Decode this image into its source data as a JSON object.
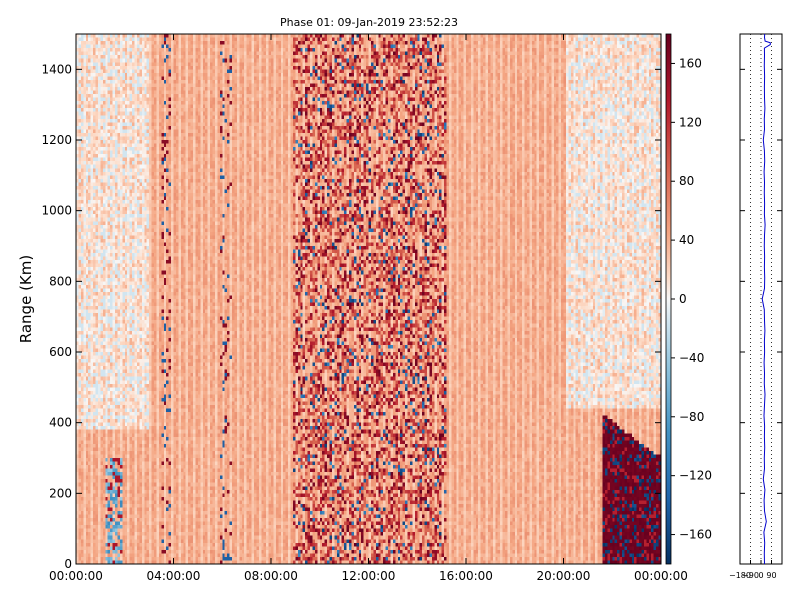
{
  "chart_data": [
    {
      "type": "heatmap",
      "title": "Phase 01: 09-Jan-2019 23:52:23",
      "xlabel": "",
      "ylabel": "Range (Km)",
      "x_ticks": [
        "00:00:00",
        "04:00:00",
        "08:00:00",
        "12:00:00",
        "16:00:00",
        "20:00:00",
        "00:00:00"
      ],
      "xlim": [
        "2019-01-09 00:00:00",
        "2019-01-10 00:00:00"
      ],
      "y_ticks": [
        0,
        200,
        400,
        600,
        800,
        1000,
        1200,
        1400
      ],
      "ylim": [
        0,
        1500
      ],
      "colormap": "RdBu_r",
      "colorbar": {
        "ticks": [
          160,
          120,
          80,
          40,
          0,
          -40,
          -80,
          -120,
          -160
        ],
        "range": [
          -180,
          180
        ]
      },
      "colors": {
        "deep_blue": "#053061",
        "mid_blue": "#4393c3",
        "light_blue": "#d1e5f0",
        "white": "#f7f7f7",
        "light_red": "#fddbc7",
        "mid_red": "#d6604d",
        "deep_red": "#67001f"
      },
      "description_note": "Phase (degrees) vs time (UT) and range (km); values mostly near +40 to +60 with high noise around 08:00-16:00 and a strong feature 21:30-24:00 below 420 km."
    },
    {
      "type": "line",
      "title": "",
      "x_ticks": [
        "−180",
        "−90",
        "0",
        "90"
      ],
      "xlim": [
        -180,
        180
      ],
      "ylim": [
        0,
        1500
      ],
      "y_ticks": [
        0,
        200,
        400,
        600,
        800,
        1000,
        1200,
        1400
      ],
      "grid": "dotted vertical",
      "series": [
        {
          "color": "#0000cc",
          "x": [
            30,
            28,
            32,
            25,
            45,
            30,
            27,
            33,
            20,
            30,
            28,
            32,
            29,
            31,
            26,
            30,
            34,
            28,
            30,
            27,
            31,
            29,
            33,
            30,
            28,
            10,
            30,
            32,
            29,
            31,
            28,
            30,
            35,
            29,
            31,
            28,
            30,
            27,
            32,
            29,
            20,
            30,
            28,
            33,
            30,
            29,
            31,
            28,
            30,
            29,
            80,
            80,
            35,
            30,
            32
          ],
          "y": [
            0,
            30,
            60,
            90,
            120,
            150,
            180,
            210,
            240,
            270,
            300,
            330,
            360,
            390,
            420,
            450,
            480,
            510,
            540,
            570,
            600,
            630,
            660,
            690,
            720,
            750,
            780,
            810,
            840,
            870,
            900,
            930,
            960,
            990,
            1020,
            1050,
            1080,
            1110,
            1140,
            1170,
            1200,
            1230,
            1260,
            1290,
            1320,
            1350,
            1380,
            1410,
            1440,
            1460,
            1470,
            1475,
            1480,
            1490,
            1500
          ]
        }
      ]
    }
  ]
}
